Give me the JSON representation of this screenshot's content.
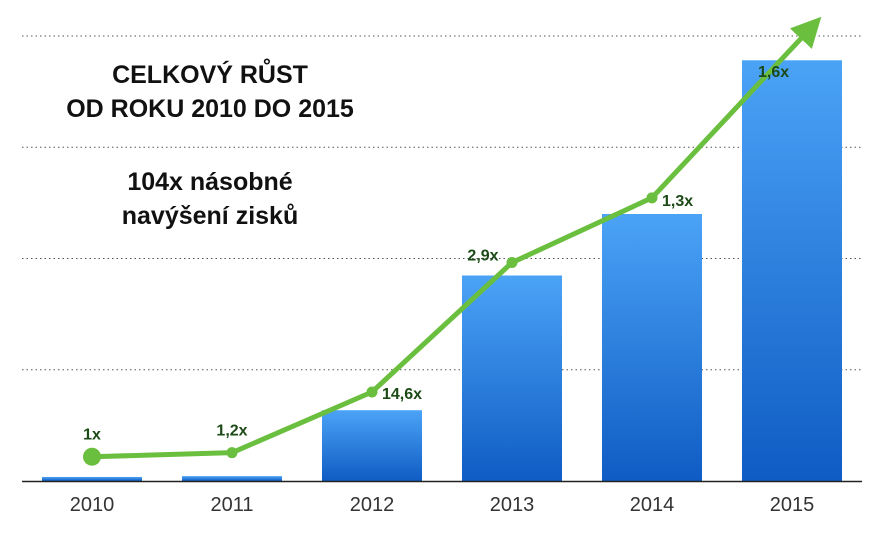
{
  "titles": {
    "line1": "CELKOVÝ RŮST",
    "line2": "OD ROKU 2010 DO 2015",
    "sub1": "104x násobné",
    "sub2": "navýšení zisků"
  },
  "colors": {
    "bar_top": "#4ba3f6",
    "bar_bottom": "#0f5cc4",
    "line": "#6abf3f",
    "line_label": "#1c4a16",
    "grid": "#555555",
    "axis": "#222222",
    "tick_text": "#333333"
  },
  "chart_data": {
    "type": "bar",
    "categories": [
      "2010",
      "2011",
      "2012",
      "2013",
      "2014",
      "2015"
    ],
    "values": [
      1,
      1.2,
      17.5,
      50.8,
      66,
      104
    ],
    "ylim": [
      0,
      110
    ],
    "grid": true,
    "growth_line": {
      "values": [
        6,
        7,
        22,
        54,
        70,
        107
      ],
      "labels": [
        "1x",
        "1,2x",
        "14,6x",
        "2,9x",
        "1,3x",
        "1,6x"
      ]
    }
  }
}
